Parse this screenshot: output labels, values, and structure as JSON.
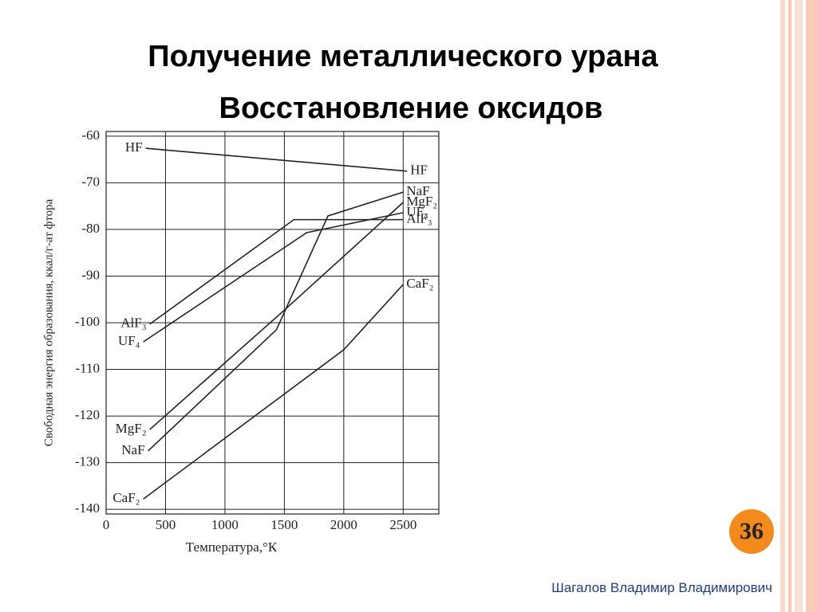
{
  "slide": {
    "title": "Получение металлического урана",
    "subtitle": "Восстановление оксидов",
    "page_number": "36",
    "author": "Шагалов Владимир Владимирович"
  },
  "chart_data": {
    "type": "line",
    "xlabel": "Температура,°К",
    "ylabel": "Свободная энергия образования, ккал/г-ат фтора",
    "xlim": [
      0,
      2800
    ],
    "ylim": [
      -141,
      -59
    ],
    "xticks": [
      0,
      500,
      1000,
      1500,
      2000,
      2500
    ],
    "yticks": [
      -60,
      -70,
      -80,
      -90,
      -100,
      -110,
      -120,
      -130,
      -140
    ],
    "grid": true,
    "series": [
      {
        "name": "HF",
        "color": "#222222",
        "x": [
          333,
          2533
        ],
        "values": [
          -62.6,
          -67.5
        ]
      },
      {
        "name": "NaF",
        "color": "#222222",
        "x": [
          353,
          1433,
          1867,
          2500
        ],
        "values": [
          -127.5,
          -101.5,
          -77.1,
          -72
        ]
      },
      {
        "name": "UF₄",
        "color": "#222222",
        "x": [
          313,
          1687,
          2500
        ],
        "values": [
          -104.1,
          -80.7,
          -76.4
        ]
      },
      {
        "name": "AlF₃",
        "color": "#222222",
        "x": [
          367,
          1580,
          2500
        ],
        "values": [
          -100.3,
          -77.9,
          -77.9
        ]
      },
      {
        "name": "MgF₂",
        "color": "#222222",
        "x": [
          367,
          1500,
          2500
        ],
        "values": [
          -122.9,
          -97.3,
          -74.2
        ]
      },
      {
        "name": "CaF₂",
        "color": "#222222",
        "x": [
          313,
          2000,
          2500
        ],
        "values": [
          -137.8,
          -105.8,
          -91.8
        ]
      }
    ]
  }
}
